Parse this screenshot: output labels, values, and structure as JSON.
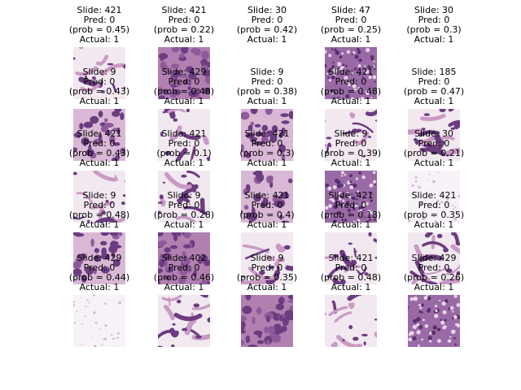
{
  "chart_data": {
    "type": "image-grid",
    "rows": 5,
    "cols": 5,
    "caption_labels": {
      "slide": "Slide: ",
      "pred": "Pred: ",
      "prob_prefix": "(prob = ",
      "prob_suffix": ")",
      "actual": "Actual: "
    },
    "palette": {
      "light": "#f2e8f0",
      "mid": "#c99ac3",
      "dark": "#6b3c80",
      "blank": "#ffffff"
    },
    "panels": [
      {
        "slide": "421",
        "pred": "0",
        "prob": "0.45",
        "actual": "1",
        "texture": "fibrous"
      },
      {
        "slide": "421",
        "pred": "0",
        "prob": "0.22",
        "actual": "1",
        "texture": "dense"
      },
      {
        "slide": "30",
        "pred": "0",
        "prob": "0.42",
        "actual": "1",
        "texture": "blank"
      },
      {
        "slide": "47",
        "pred": "0",
        "prob": "0.25",
        "actual": "1",
        "texture": "dotted"
      },
      {
        "slide": "30",
        "pred": "0",
        "prob": "0.3",
        "actual": "1",
        "texture": "blank"
      },
      {
        "slide": "9",
        "pred": "0",
        "prob": "0.43",
        "actual": "1",
        "texture": "cellular"
      },
      {
        "slide": "429",
        "pred": "0",
        "prob": "0.48",
        "actual": "1",
        "texture": "fibrous"
      },
      {
        "slide": "9",
        "pred": "0",
        "prob": "0.38",
        "actual": "1",
        "texture": "cellular"
      },
      {
        "slide": "421",
        "pred": "0",
        "prob": "0.48",
        "actual": "1",
        "texture": "fibrous"
      },
      {
        "slide": "185",
        "pred": "0",
        "prob": "0.47",
        "actual": "1",
        "texture": "streaked"
      },
      {
        "slide": "421",
        "pred": "0",
        "prob": "0.43",
        "actual": "1",
        "texture": "fibrous"
      },
      {
        "slide": "421",
        "pred": "0",
        "prob": "0.1",
        "actual": "1",
        "texture": "fibrous"
      },
      {
        "slide": "421",
        "pred": "0",
        "prob": "0.3",
        "actual": "1",
        "texture": "cellular"
      },
      {
        "slide": "9",
        "pred": "0",
        "prob": "0.39",
        "actual": "1",
        "texture": "dotted"
      },
      {
        "slide": "30",
        "pred": "0",
        "prob": "0.21",
        "actual": "1",
        "texture": "pale"
      },
      {
        "slide": "9",
        "pred": "0",
        "prob": "0.48",
        "actual": "1",
        "texture": "cellular"
      },
      {
        "slide": "9",
        "pred": "0",
        "prob": "0.28",
        "actual": "1",
        "texture": "dense"
      },
      {
        "slide": "421",
        "pred": "0",
        "prob": "0.4",
        "actual": "1",
        "texture": "fibrous"
      },
      {
        "slide": "421",
        "pred": "0",
        "prob": "0.18",
        "actual": "1",
        "texture": "fibrous"
      },
      {
        "slide": "421",
        "pred": "0",
        "prob": "0.35",
        "actual": "1",
        "texture": "streaked"
      },
      {
        "slide": "429",
        "pred": "0",
        "prob": "0.44",
        "actual": "1",
        "texture": "pale"
      },
      {
        "slide": "402",
        "pred": "0",
        "prob": "0.46",
        "actual": "1",
        "texture": "streaked"
      },
      {
        "slide": "9",
        "pred": "0",
        "prob": "0.35",
        "actual": "1",
        "texture": "dense"
      },
      {
        "slide": "421",
        "pred": "0",
        "prob": "0.48",
        "actual": "1",
        "texture": "fibrous"
      },
      {
        "slide": "429",
        "pred": "0",
        "prob": "0.26",
        "actual": "1",
        "texture": "dotted"
      }
    ]
  }
}
